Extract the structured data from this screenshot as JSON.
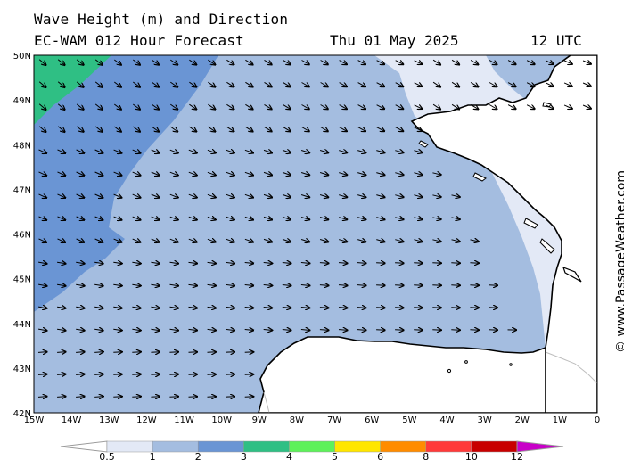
{
  "header": {
    "title": "Wave Height (m) and Direction",
    "subtitle": "EC-WAM 012 Hour Forecast",
    "date": "Thu 01 May 2025",
    "time": "12 UTC"
  },
  "credit": "© www.PassageWeather.com",
  "map": {
    "lon_min": -15,
    "lon_max": 0,
    "lat_min": 42,
    "lat_max": 50,
    "lon_labels": [
      "15W",
      "14W",
      "13W",
      "12W",
      "11W",
      "10W",
      "9W",
      "8W",
      "7W",
      "6W",
      "5W",
      "4W",
      "3W",
      "2W",
      "1W",
      "0"
    ],
    "lat_labels": [
      "50N",
      "49N",
      "48N",
      "47N",
      "46N",
      "45N",
      "44N",
      "43N",
      "42N"
    ]
  },
  "legend": {
    "labels": [
      "0.5",
      "1",
      "2",
      "3",
      "4",
      "5",
      "6",
      "8",
      "10",
      "12"
    ],
    "colors": [
      "#e3e9f6",
      "#a4bde0",
      "#6a95d4",
      "#2fbf84",
      "#5ef15a",
      "#ffe600",
      "#ff8c00",
      "#ff3a3a",
      "#c80000",
      "#c800c8"
    ]
  },
  "colors": {
    "band_0_5_1": "#e3e9f6",
    "band_1_2": "#a4bde0",
    "band_2_3": "#6a95d4",
    "band_3_4": "#2fbf84",
    "land": "#ffffff",
    "coast": "#000000",
    "arrow": "#000000"
  }
}
